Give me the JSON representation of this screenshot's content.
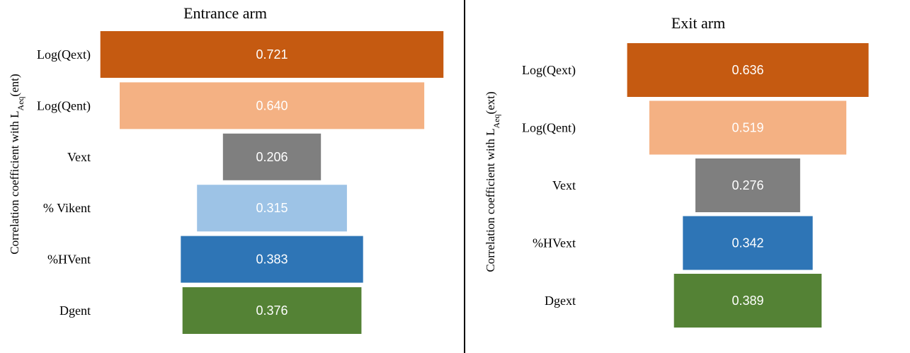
{
  "chart_data": [
    {
      "type": "bar",
      "orientation": "funnel",
      "title": "Entrance arm",
      "ylabel": {
        "main": "Correlation coefficient with L",
        "sub": "Aeq",
        "tail": "(ent)"
      },
      "categories": [
        "Log(Qext)",
        "Log(Qent)",
        "Vext",
        "% Vikent",
        "%HVent",
        "Dgent"
      ],
      "values": [
        0.721,
        0.64,
        0.206,
        0.315,
        0.383,
        0.376
      ],
      "labels": [
        "0.721",
        "0.640",
        "0.206",
        "0.315",
        "0.383",
        "0.376"
      ],
      "colors": [
        "#c55a11",
        "#f4b183",
        "#7f7f7f",
        "#9dc3e6",
        "#2e75b6",
        "#548235"
      ]
    },
    {
      "type": "bar",
      "orientation": "funnel",
      "title": "Exit arm",
      "ylabel": {
        "main": "Correlation coefficient with L",
        "sub": "Aeq",
        "tail": "(ext)"
      },
      "categories": [
        "Log(Qext)",
        "Log(Qent)",
        "Vext",
        "%HVext",
        "Dgext"
      ],
      "values": [
        0.636,
        0.519,
        0.276,
        0.342,
        0.389
      ],
      "labels": [
        "0.636",
        "0.519",
        "0.276",
        "0.342",
        "0.389"
      ],
      "colors": [
        "#c55a11",
        "#f4b183",
        "#7f7f7f",
        "#2e75b6",
        "#548235"
      ]
    }
  ]
}
